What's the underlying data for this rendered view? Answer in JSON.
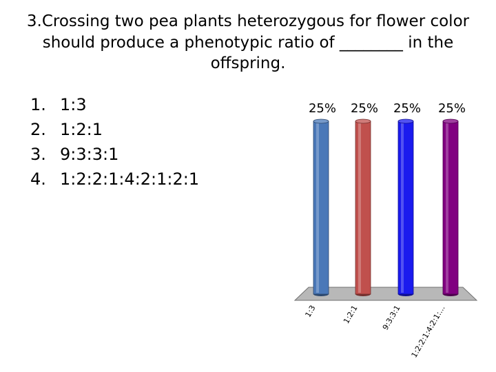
{
  "question": {
    "line1": "3.Crossing two pea plants heterozygous for flower color",
    "line2": "should produce a phenotypic ratio of ________ in the",
    "line3": "offspring."
  },
  "answers": [
    {
      "number": "1.",
      "text": "1:3"
    },
    {
      "number": "2.",
      "text": "1:2:1"
    },
    {
      "number": "3.",
      "text": "9:3:3:1"
    },
    {
      "number": "4.",
      "text": "1:2:2:1:4:2:1:2:1"
    }
  ],
  "chart_data": {
    "type": "bar",
    "categories": [
      "1:3",
      "1:2:1",
      "9:3:3:1",
      "1:2:2:1:4:2:1:..."
    ],
    "values": [
      25,
      25,
      25,
      25
    ],
    "value_labels": [
      "25%",
      "25%",
      "25%",
      "25%"
    ],
    "colors": [
      "#4a78b8",
      "#c0504d",
      "#1a1aee",
      "#800080"
    ],
    "ylim": [
      0,
      25
    ]
  }
}
